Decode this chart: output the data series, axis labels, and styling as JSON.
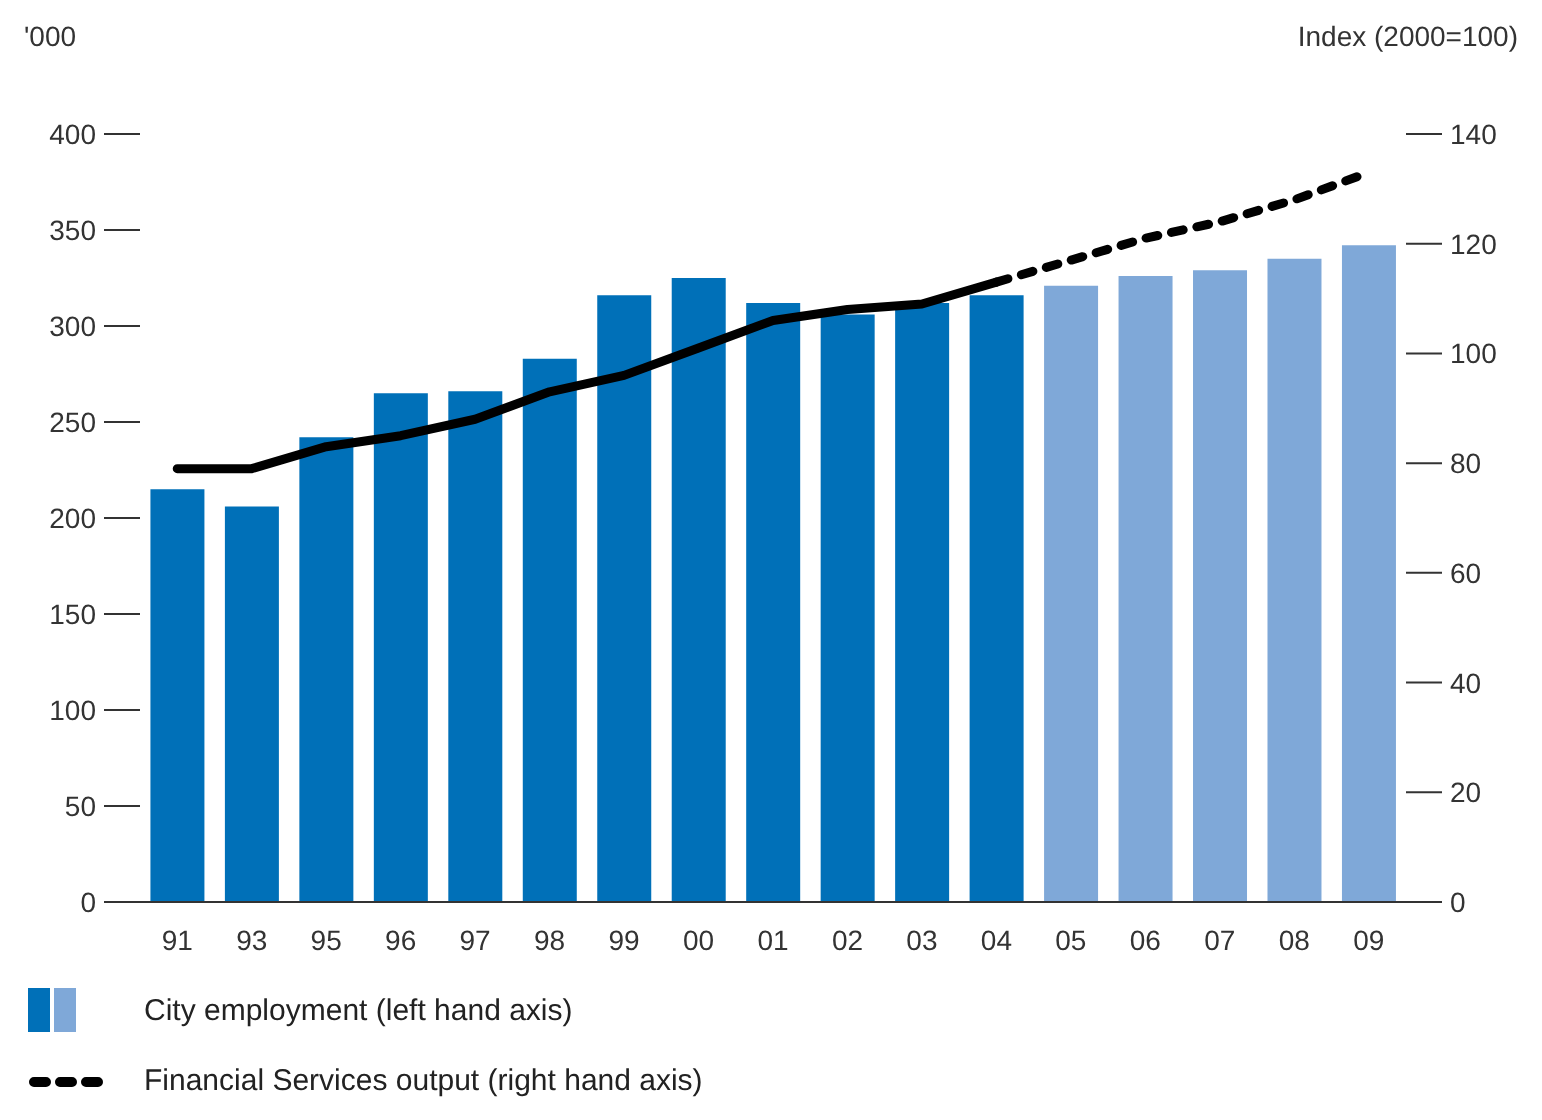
{
  "chart_data": {
    "type": "bar",
    "ylabel": "'000",
    "y2label": "Index (2000=100)",
    "categories": [
      "91",
      "93",
      "95",
      "96",
      "97",
      "98",
      "99",
      "00",
      "01",
      "02",
      "03",
      "04",
      "05",
      "06",
      "07",
      "08",
      "09"
    ],
    "series": [
      {
        "name": "City employment (left hand axis)",
        "values": [
          215,
          206,
          242,
          265,
          266,
          283,
          316,
          325,
          312,
          306,
          312,
          316,
          321,
          326,
          329,
          335,
          342
        ],
        "colors": [
          "#0070b8",
          "#0070b8",
          "#0070b8",
          "#0070b8",
          "#0070b8",
          "#0070b8",
          "#0070b8",
          "#0070b8",
          "#0070b8",
          "#0070b8",
          "#0070b8",
          "#0070b8",
          "#7fa8d8",
          "#7fa8d8",
          "#7fa8d8",
          "#7fa8d8",
          "#7fa8d8"
        ]
      },
      {
        "type": "line",
        "axis": "y2",
        "color": "#000000",
        "line_style": "solid",
        "values": [
          79,
          79,
          83,
          85,
          88,
          93,
          96,
          101,
          106,
          108,
          109,
          113,
          null,
          null,
          null,
          null,
          null
        ]
      },
      {
        "type": "line",
        "axis": "y2",
        "name": "Financial Services output (right hand axis)",
        "color": "#000000",
        "line_style": "dashed",
        "values": [
          null,
          null,
          null,
          null,
          null,
          null,
          null,
          null,
          null,
          null,
          null,
          113,
          117,
          121,
          124,
          128,
          133
        ]
      }
    ],
    "ylim": [
      0,
      400
    ],
    "yticks": [
      0,
      50,
      100,
      150,
      200,
      250,
      300,
      350,
      400
    ],
    "y2lim": [
      0,
      140
    ],
    "y2ticks": [
      0,
      20,
      40,
      60,
      80,
      100,
      120,
      140
    ],
    "legend": "bottom"
  }
}
